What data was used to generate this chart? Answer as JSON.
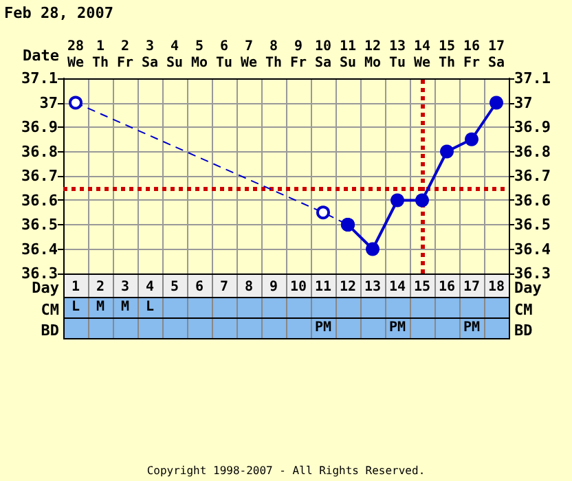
{
  "chart_data": {
    "type": "line",
    "title": "Feb 28, 2007",
    "xlabel": "Date",
    "x2label": "Day",
    "categories": [
      "28 We",
      "1 Th",
      "2 Fr",
      "3 Sa",
      "4 Su",
      "5 Mo",
      "6 Tu",
      "7 We",
      "8 Th",
      "9 Fr",
      "10 Sa",
      "11 Su",
      "12 Mo",
      "13 Tu",
      "14 We",
      "15 Th",
      "16 Fr",
      "17 Sa"
    ],
    "series": [
      {
        "color": "#0000cc",
        "line_style": "dashed",
        "values": [
          37.0,
          null,
          null,
          null,
          null,
          null,
          null,
          null,
          null,
          null,
          36.55,
          36.5,
          null,
          null,
          null,
          null,
          null,
          null
        ]
      },
      {
        "color": "#0000cc",
        "line_style": "solid",
        "values": [
          null,
          null,
          null,
          null,
          null,
          null,
          null,
          null,
          null,
          null,
          null,
          36.5,
          36.4,
          36.6,
          36.6,
          36.8,
          36.85,
          37.0
        ]
      }
    ],
    "marker": "circle",
    "ylim": [
      36.3,
      37.1
    ],
    "yticks": [
      36.3,
      36.4,
      36.5,
      36.6,
      36.7,
      36.8,
      36.9,
      37.0,
      37.1
    ],
    "y2lim": [
      36.3,
      37.1
    ],
    "y2ticks": [
      36.3,
      36.4,
      36.5,
      36.6,
      36.7,
      36.8,
      36.9,
      37.0,
      37.1
    ],
    "x2lim": [
      0.5,
      18.5
    ],
    "x2ticks": [
      1,
      2,
      3,
      4,
      5,
      6,
      7,
      8,
      9,
      10,
      11,
      12,
      13,
      14,
      15,
      16,
      17,
      18
    ],
    "grid": true,
    "ref_lines": [
      {
        "axis": "y",
        "value": 36.65,
        "color": "#cc0000",
        "line_style": "dotted"
      },
      {
        "axis": "x",
        "value": "14 We",
        "color": "#cc0000",
        "line_style": "dotted"
      }
    ],
    "annotations": [
      "CM",
      "L",
      "M",
      "M",
      "L",
      "BD",
      "PM",
      "PM",
      "PM",
      "Copyright 1998-2007 - All Rights Reserved."
    ]
  }
}
